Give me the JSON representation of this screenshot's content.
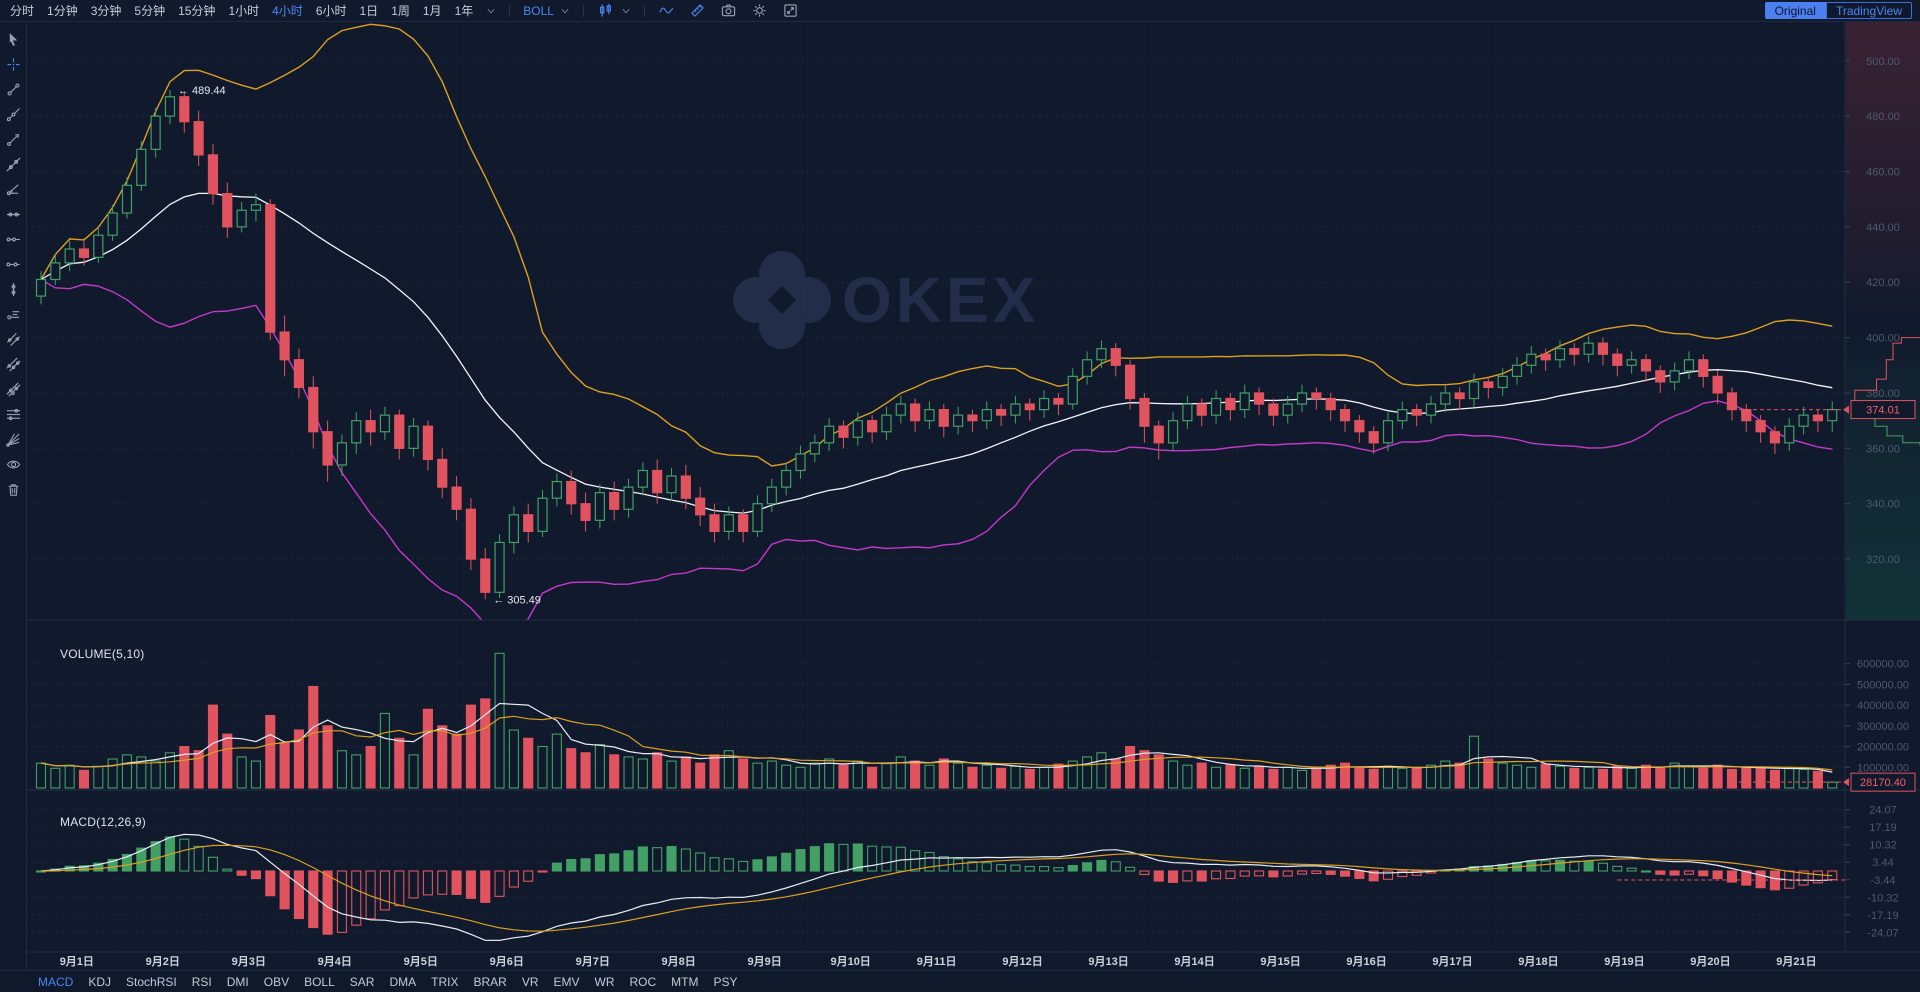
{
  "toolbar": {
    "timeframes": [
      {
        "label": "分时",
        "active": false
      },
      {
        "label": "1分钟",
        "active": false
      },
      {
        "label": "3分钟",
        "active": false
      },
      {
        "label": "5分钟",
        "active": false
      },
      {
        "label": "15分钟",
        "active": false
      },
      {
        "label": "1小时",
        "active": false
      },
      {
        "label": "4小时",
        "active": true
      },
      {
        "label": "6小时",
        "active": false
      },
      {
        "label": "1日",
        "active": false
      },
      {
        "label": "1周",
        "active": false
      },
      {
        "label": "1月",
        "active": false
      },
      {
        "label": "1年",
        "active": false
      }
    ],
    "indicator_dropdown": "BOLL",
    "mode_buttons": [
      {
        "label": "Original",
        "active": true
      },
      {
        "label": "TradingView",
        "active": false
      }
    ]
  },
  "sidebar": {
    "tools": [
      {
        "name": "cursor-tool",
        "icon": "cursor",
        "active": false
      },
      {
        "name": "crosshair-tool",
        "icon": "crosshair",
        "active": true
      },
      {
        "name": "trend-line-tool",
        "icon": "diag",
        "active": false
      },
      {
        "name": "ray-line-tool",
        "icon": "diag2",
        "active": false
      },
      {
        "name": "arrow-line-tool",
        "icon": "diagArrow",
        "active": false
      },
      {
        "name": "extended-line-tool",
        "icon": "diag3",
        "active": false
      },
      {
        "name": "trend-angle-tool",
        "icon": "diag4",
        "active": false
      },
      {
        "name": "horizontal-line-tool",
        "icon": "hline",
        "active": false
      },
      {
        "name": "horizontal-ray-tool",
        "icon": "hray",
        "active": false
      },
      {
        "name": "horizontal-segment-tool",
        "icon": "hseg",
        "active": false
      },
      {
        "name": "vertical-line-tool",
        "icon": "vline",
        "active": false
      },
      {
        "name": "price-label-tool",
        "icon": "pricetag",
        "active": false
      },
      {
        "name": "parallel-channel-tool",
        "icon": "channel",
        "active": false
      },
      {
        "name": "pitchfork-tool",
        "icon": "channel2",
        "active": false
      },
      {
        "name": "regression-channel-tool",
        "icon": "channel3",
        "active": false
      },
      {
        "name": "multi-line-tool",
        "icon": "hlines",
        "active": false
      },
      {
        "name": "gann-fan-tool",
        "icon": "fan",
        "active": false
      },
      {
        "name": "visibility-tool",
        "icon": "eye",
        "active": false
      },
      {
        "name": "delete-tool",
        "icon": "trash",
        "active": false
      }
    ]
  },
  "panes": {
    "volume_label": "VOLUME(5,10)",
    "macd_label": "MACD(12,26,9)"
  },
  "axes": {
    "price_ticks": [
      "500.00",
      "480.00",
      "460.00",
      "440.00",
      "420.00",
      "400.00",
      "380.00",
      "360.00",
      "340.00",
      "320.00"
    ],
    "volume_ticks": [
      "600000.00",
      "500000.00",
      "400000.00",
      "300000.00",
      "200000.00",
      "100000.00"
    ],
    "macd_ticks": [
      "24.07",
      "17.19",
      "10.32",
      "3.44",
      "-3.44",
      "-10.32",
      "-17.19",
      "-24.07"
    ],
    "dates": [
      "9月1日",
      "9月2日",
      "9月3日",
      "9月4日",
      "9月5日",
      "9月6日",
      "9月7日",
      "9月8日",
      "9月9日",
      "9月10日",
      "9月11日",
      "9月12日",
      "9月13日",
      "9月14日",
      "9月15日",
      "9月16日",
      "9月17日",
      "9月18日",
      "9月19日",
      "9月20日",
      "9月21日"
    ],
    "last_price": "374.01",
    "last_volume": "28170.40"
  },
  "annotations": {
    "high": "← 489.44",
    "low": "← 305.49"
  },
  "watermark": "OKEX",
  "indicator_tabs": [
    {
      "label": "MACD",
      "active": true
    },
    {
      "label": "KDJ",
      "active": false
    },
    {
      "label": "StochRSI",
      "active": false
    },
    {
      "label": "RSI",
      "active": false
    },
    {
      "label": "DMI",
      "active": false
    },
    {
      "label": "OBV",
      "active": false
    },
    {
      "label": "BOLL",
      "active": false
    },
    {
      "label": "SAR",
      "active": false
    },
    {
      "label": "DMA",
      "active": false
    },
    {
      "label": "TRIX",
      "active": false
    },
    {
      "label": "BRAR",
      "active": false
    },
    {
      "label": "VR",
      "active": false
    },
    {
      "label": "EMV",
      "active": false
    },
    {
      "label": "WR",
      "active": false
    },
    {
      "label": "ROC",
      "active": false
    },
    {
      "label": "MTM",
      "active": false
    },
    {
      "label": "PSY",
      "active": false
    }
  ],
  "colors": {
    "background": "#111a2c",
    "up": "#42a065",
    "down": "#e1545f",
    "boll_upper": "#dda021",
    "boll_mid": "#f2f4f8",
    "boll_lower": "#c438cc",
    "accent": "#4c86f5",
    "axis_text": "#4e586e",
    "grid": "#27304a",
    "watermark": "#232d49",
    "last_value": "#f0606a"
  },
  "chart_data": {
    "type": "candlestick",
    "timeframe": "4小时",
    "overlays": [
      "BOLL"
    ],
    "sub_indicators": [
      "VOLUME(5,10)",
      "MACD(12,26,9)"
    ],
    "high_annotation": 489.44,
    "low_annotation": 305.49,
    "last_price": 374.01,
    "last_volume": 28170.4,
    "price_axis": {
      "min": 298,
      "max": 514,
      "ticks": [
        500,
        480,
        460,
        440,
        420,
        400,
        380,
        360,
        340,
        320
      ]
    },
    "volume_axis": {
      "max": 700000,
      "ticks": [
        600000,
        500000,
        400000,
        300000,
        200000,
        100000
      ]
    },
    "macd_axis": {
      "range": 27.5,
      "ticks": [
        24.07,
        17.19,
        10.32,
        3.44,
        -3.44,
        -10.32,
        -17.19,
        -24.07
      ]
    },
    "candles": [
      [
        415,
        424,
        412,
        421
      ],
      [
        421,
        430,
        419,
        427
      ],
      [
        427,
        435,
        424,
        432
      ],
      [
        432,
        436,
        426,
        429
      ],
      [
        429,
        440,
        427,
        437
      ],
      [
        437,
        448,
        435,
        445
      ],
      [
        445,
        458,
        443,
        455
      ],
      [
        455,
        471,
        453,
        468
      ],
      [
        468,
        483,
        465,
        480
      ],
      [
        480,
        489.44,
        477,
        487
      ],
      [
        487,
        489,
        474,
        478
      ],
      [
        478,
        482,
        462,
        466
      ],
      [
        466,
        470,
        448,
        452
      ],
      [
        452,
        456,
        436,
        440
      ],
      [
        440,
        449,
        438,
        446
      ],
      [
        446,
        452,
        442,
        448
      ],
      [
        448,
        450,
        399,
        402
      ],
      [
        402,
        408,
        386,
        392
      ],
      [
        392,
        396,
        378,
        382
      ],
      [
        382,
        386,
        360,
        366
      ],
      [
        366,
        370,
        348,
        354
      ],
      [
        354,
        365,
        350,
        362
      ],
      [
        362,
        373,
        358,
        370
      ],
      [
        370,
        374,
        361,
        366
      ],
      [
        366,
        375,
        363,
        372
      ],
      [
        372,
        374,
        356,
        360
      ],
      [
        360,
        371,
        357,
        368
      ],
      [
        368,
        370,
        352,
        356
      ],
      [
        356,
        360,
        342,
        346
      ],
      [
        346,
        350,
        334,
        338
      ],
      [
        338,
        342,
        316,
        320
      ],
      [
        320,
        324,
        305.49,
        308
      ],
      [
        308,
        329,
        306,
        326
      ],
      [
        326,
        339,
        322,
        336
      ],
      [
        336,
        340,
        326,
        330
      ],
      [
        330,
        345,
        328,
        342
      ],
      [
        342,
        351,
        339,
        348
      ],
      [
        348,
        352,
        336,
        340
      ],
      [
        340,
        344,
        330,
        334
      ],
      [
        334,
        347,
        331,
        344
      ],
      [
        344,
        348,
        334,
        338
      ],
      [
        338,
        349,
        335,
        346
      ],
      [
        346,
        355,
        343,
        352
      ],
      [
        352,
        356,
        340,
        344
      ],
      [
        344,
        353,
        341,
        350
      ],
      [
        350,
        354,
        338,
        342
      ],
      [
        342,
        346,
        332,
        336
      ],
      [
        336,
        340,
        326,
        330
      ],
      [
        330,
        339,
        327,
        336
      ],
      [
        336,
        338,
        326,
        330
      ],
      [
        330,
        343,
        328,
        340
      ],
      [
        340,
        349,
        337,
        346
      ],
      [
        346,
        355,
        343,
        352
      ],
      [
        352,
        361,
        349,
        358
      ],
      [
        358,
        365,
        355,
        362
      ],
      [
        362,
        371,
        359,
        368
      ],
      [
        368,
        370,
        360,
        364
      ],
      [
        364,
        373,
        361,
        370
      ],
      [
        370,
        372,
        362,
        366
      ],
      [
        366,
        375,
        363,
        372
      ],
      [
        372,
        379,
        369,
        376
      ],
      [
        376,
        378,
        366,
        370
      ],
      [
        370,
        377,
        367,
        374
      ],
      [
        374,
        376,
        364,
        368
      ],
      [
        368,
        375,
        365,
        372
      ],
      [
        372,
        374,
        366,
        370
      ],
      [
        370,
        377,
        367,
        374
      ],
      [
        374,
        376,
        368,
        372
      ],
      [
        372,
        379,
        369,
        376
      ],
      [
        376,
        378,
        370,
        374
      ],
      [
        374,
        381,
        371,
        378
      ],
      [
        378,
        380,
        372,
        376
      ],
      [
        376,
        389,
        374,
        386
      ],
      [
        386,
        395,
        383,
        392
      ],
      [
        392,
        399,
        389,
        396
      ],
      [
        396,
        398,
        386,
        390
      ],
      [
        390,
        392,
        374,
        378
      ],
      [
        378,
        380,
        362,
        368
      ],
      [
        368,
        370,
        356,
        362
      ],
      [
        362,
        373,
        359,
        370
      ],
      [
        370,
        379,
        367,
        376
      ],
      [
        376,
        378,
        368,
        372
      ],
      [
        372,
        381,
        369,
        378
      ],
      [
        378,
        380,
        370,
        374
      ],
      [
        374,
        383,
        371,
        380
      ],
      [
        380,
        382,
        372,
        376
      ],
      [
        376,
        378,
        368,
        372
      ],
      [
        372,
        379,
        369,
        376
      ],
      [
        376,
        383,
        373,
        380
      ],
      [
        380,
        382,
        374,
        378
      ],
      [
        378,
        380,
        370,
        374
      ],
      [
        374,
        376,
        366,
        370
      ],
      [
        370,
        372,
        362,
        366
      ],
      [
        366,
        368,
        358,
        362
      ],
      [
        362,
        373,
        359,
        370
      ],
      [
        370,
        377,
        367,
        374
      ],
      [
        374,
        376,
        368,
        372
      ],
      [
        372,
        379,
        369,
        376
      ],
      [
        376,
        383,
        373,
        380
      ],
      [
        380,
        382,
        374,
        378
      ],
      [
        378,
        387,
        375,
        384
      ],
      [
        384,
        386,
        378,
        382
      ],
      [
        382,
        389,
        379,
        386
      ],
      [
        386,
        393,
        383,
        390
      ],
      [
        390,
        397,
        387,
        394
      ],
      [
        394,
        396,
        388,
        392
      ],
      [
        392,
        399,
        389,
        396
      ],
      [
        396,
        398,
        390,
        394
      ],
      [
        394,
        401,
        391,
        398
      ],
      [
        398,
        400,
        390,
        394
      ],
      [
        394,
        396,
        386,
        390
      ],
      [
        390,
        395,
        387,
        392
      ],
      [
        392,
        394,
        384,
        388
      ],
      [
        388,
        390,
        380,
        384
      ],
      [
        384,
        391,
        381,
        388
      ],
      [
        388,
        395,
        385,
        392
      ],
      [
        392,
        394,
        382,
        386
      ],
      [
        386,
        388,
        376,
        380
      ],
      [
        380,
        382,
        370,
        374
      ],
      [
        374,
        376,
        366,
        370
      ],
      [
        370,
        372,
        362,
        366
      ],
      [
        366,
        368,
        358,
        362
      ],
      [
        362,
        371,
        359,
        368
      ],
      [
        368,
        375,
        365,
        372
      ],
      [
        372,
        374,
        366,
        370
      ],
      [
        370,
        377,
        366,
        374.01
      ]
    ],
    "volumes": [
      120000,
      95000,
      110000,
      85000,
      105000,
      140000,
      160000,
      150000,
      130000,
      170000,
      200000,
      180000,
      400000,
      260000,
      150000,
      130000,
      350000,
      220000,
      280000,
      490000,
      300000,
      180000,
      160000,
      200000,
      360000,
      240000,
      160000,
      380000,
      300000,
      260000,
      400000,
      430000,
      650000,
      280000,
      240000,
      200000,
      260000,
      190000,
      170000,
      210000,
      160000,
      150000,
      140000,
      170000,
      130000,
      150000,
      120000,
      160000,
      180000,
      140000,
      120000,
      130000,
      110000,
      100000,
      120000,
      140000,
      110000,
      130000,
      100000,
      120000,
      150000,
      130000,
      110000,
      140000,
      120000,
      100000,
      110000,
      95000,
      105000,
      90000,
      100000,
      115000,
      130000,
      150000,
      170000,
      140000,
      200000,
      180000,
      160000,
      130000,
      110000,
      120000,
      100000,
      110000,
      95000,
      105000,
      90000,
      100000,
      85000,
      95000,
      110000,
      120000,
      100000,
      90000,
      105000,
      95000,
      100000,
      110000,
      130000,
      120000,
      250000,
      140000,
      120000,
      110000,
      100000,
      115000,
      105000,
      95000,
      100000,
      90000,
      105000,
      95000,
      110000,
      100000,
      120000,
      105000,
      95000,
      110000,
      90000,
      100000,
      95000,
      85000,
      100000,
      90000,
      80000,
      28170.4
    ],
    "depth_ask": [
      [
        1.0,
        400
      ],
      [
        0.75,
        398
      ],
      [
        0.64,
        392
      ],
      [
        0.55,
        385
      ],
      [
        0.42,
        381
      ],
      [
        0.13,
        374.8
      ]
    ],
    "depth_bid": [
      [
        0.13,
        373.2
      ],
      [
        0.4,
        368
      ],
      [
        0.56,
        364.5
      ],
      [
        0.77,
        362
      ],
      [
        1.0,
        361
      ]
    ]
  }
}
